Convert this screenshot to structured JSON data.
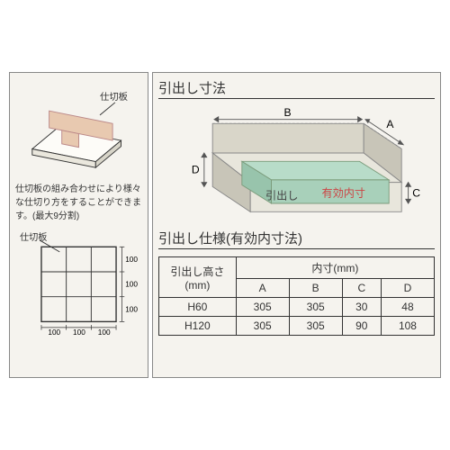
{
  "left": {
    "divider_label": "仕切板",
    "description": "仕切板の組み合わせにより様々な仕切り方をすることができます。(最大9分割)",
    "divider_label2": "仕切板",
    "grid_dims": [
      "100",
      "100",
      "100"
    ],
    "grid_vdims": [
      "100",
      "100",
      "100"
    ]
  },
  "right": {
    "title1": "引出し寸法",
    "title2": "引出し仕様(有効内寸法)",
    "box_labels": {
      "A": "A",
      "B": "B",
      "C": "C",
      "D": "D",
      "drawer": "引出し",
      "effective": "有効内寸"
    },
    "colors": {
      "box_top": "#d9d6c9",
      "box_front": "#e8e6dc",
      "box_side": "#c8c5b8",
      "inner": "#b8dcc9",
      "edge": "#7b9b7b",
      "dim_line": "#555555"
    },
    "table": {
      "header_height": "引出し高さ\n(mm)",
      "header_inner": "内寸(mm)",
      "columns": [
        "A",
        "B",
        "C",
        "D"
      ],
      "rows": [
        {
          "height": "H60",
          "values": [
            "305",
            "305",
            "30",
            "48"
          ]
        },
        {
          "height": "H120",
          "values": [
            "305",
            "305",
            "90",
            "108"
          ]
        }
      ]
    }
  }
}
